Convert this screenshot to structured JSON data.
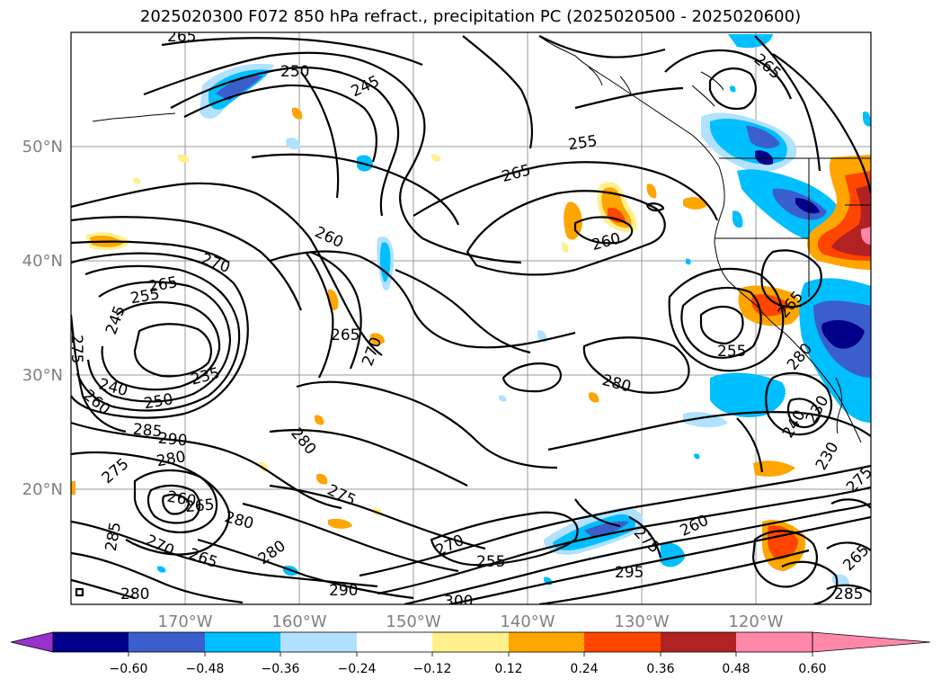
{
  "title": "2025020300 F072 850 hPa refract., precipitation PC (2025020500 - 2025020600)",
  "latitude_labels": [
    "50°N",
    "40°N",
    "30°N",
    "20°N"
  ],
  "longitude_labels": [
    "170°W",
    "160°W",
    "150°W",
    "140°W",
    "130°W",
    "120°W"
  ],
  "contour_labels": [
    "265",
    "250",
    "245",
    "255",
    "265",
    "265",
    "260",
    "260",
    "270",
    "265",
    "255",
    "245",
    "275",
    "235",
    "240",
    "250",
    "260",
    "265",
    "270",
    "280",
    "285",
    "290",
    "280",
    "275",
    "280",
    "285",
    "270",
    "265",
    "280",
    "260",
    "265",
    "275",
    "280",
    "270",
    "255",
    "300",
    "290",
    "280",
    "295",
    "275",
    "260",
    "255",
    "265",
    "240",
    "230",
    "230",
    "265",
    "280",
    "285",
    "275"
  ],
  "colorbar": {
    "ticks": [
      "−0.60",
      "−0.48",
      "−0.36",
      "−0.24",
      "−0.12",
      "0.12",
      "0.24",
      "0.36",
      "0.48",
      "0.60"
    ],
    "colors": [
      "#9932cc",
      "#00008b",
      "#3a5fcd",
      "#00bfff",
      "#b0e2ff",
      "#ffffff",
      "#fff08c",
      "#ffa500",
      "#ff4500",
      "#b22222",
      "#ff88aa"
    ]
  }
}
